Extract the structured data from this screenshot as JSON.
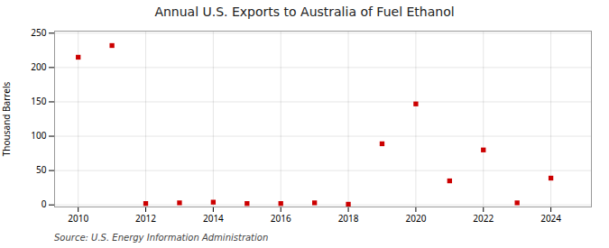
{
  "chart_data": {
    "type": "scatter",
    "title": "Annual U.S. Exports to Australia of Fuel Ethanol",
    "ylabel": "Thousand Barrels",
    "annotation": "Source: U.S. Energy Information Administration",
    "x": [
      2010,
      2011,
      2012,
      2013,
      2014,
      2015,
      2016,
      2017,
      2018,
      2019,
      2020,
      2021,
      2022,
      2023,
      2024
    ],
    "values": [
      215,
      232,
      2,
      3,
      4,
      2,
      2,
      3,
      1,
      89,
      147,
      35,
      80,
      3,
      39
    ],
    "color": "#cc0000",
    "marker": "square",
    "xlim": [
      2009.3,
      2025.2
    ],
    "ylim": [
      -3,
      253
    ],
    "xticks": [
      2010,
      2012,
      2014,
      2016,
      2018,
      2020,
      2022,
      2024
    ],
    "yticks": [
      0,
      50,
      100,
      150,
      200,
      250
    ],
    "grid": true
  }
}
